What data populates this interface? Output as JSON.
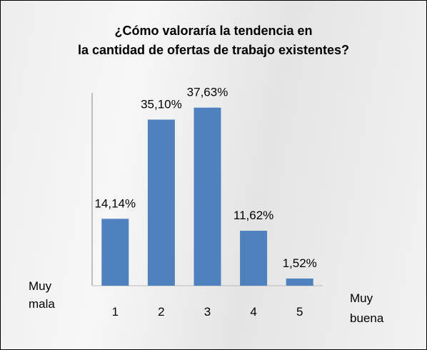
{
  "chart_data": {
    "type": "bar",
    "title": "¿Cómo valoraría la tendencia en\nla cantidad de ofertas de trabajo existentes?",
    "categories": [
      "1",
      "2",
      "3",
      "4",
      "5"
    ],
    "values": [
      14.14,
      35.1,
      37.63,
      11.62,
      1.52
    ],
    "value_labels": [
      "14,14%",
      "35,10%",
      "37,63%",
      "11,62%",
      "1,52%"
    ],
    "annotations": [
      "Muy\nmala",
      "Muy\nbuena"
    ],
    "color": "#4f81bd",
    "ylim": [
      0,
      40
    ]
  }
}
